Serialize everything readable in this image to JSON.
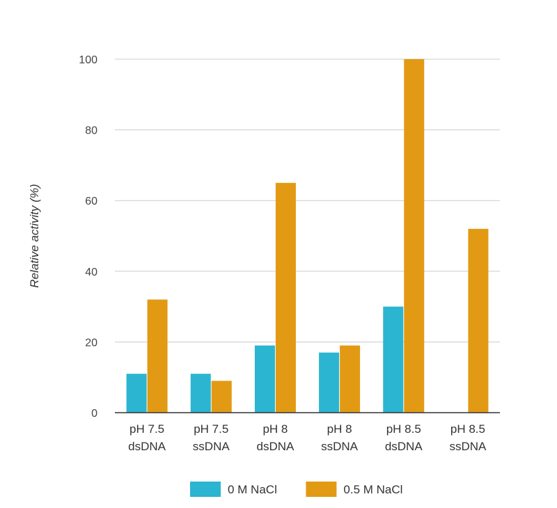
{
  "chart_data": {
    "type": "bar",
    "title": "",
    "xlabel": "",
    "ylabel": "Relative activity (%)",
    "ylim": [
      0,
      100
    ],
    "yticks": [
      0,
      20,
      40,
      60,
      80,
      100
    ],
    "grid": true,
    "legend_position": "bottom",
    "categories": [
      [
        "pH 7.5",
        "dsDNA"
      ],
      [
        "pH 7.5",
        "ssDNA"
      ],
      [
        "pH 8",
        "dsDNA"
      ],
      [
        "pH 8",
        "ssDNA"
      ],
      [
        "pH 8.5",
        "dsDNA"
      ],
      [
        "pH 8.5",
        "ssDNA"
      ]
    ],
    "series": [
      {
        "name": "0 M NaCl",
        "color": "#2bb5d1",
        "values": [
          11,
          11,
          19,
          17,
          30,
          0
        ]
      },
      {
        "name": "0.5 M NaCl",
        "color": "#e29a14",
        "values": [
          32,
          9,
          65,
          19,
          100,
          52
        ]
      }
    ]
  }
}
